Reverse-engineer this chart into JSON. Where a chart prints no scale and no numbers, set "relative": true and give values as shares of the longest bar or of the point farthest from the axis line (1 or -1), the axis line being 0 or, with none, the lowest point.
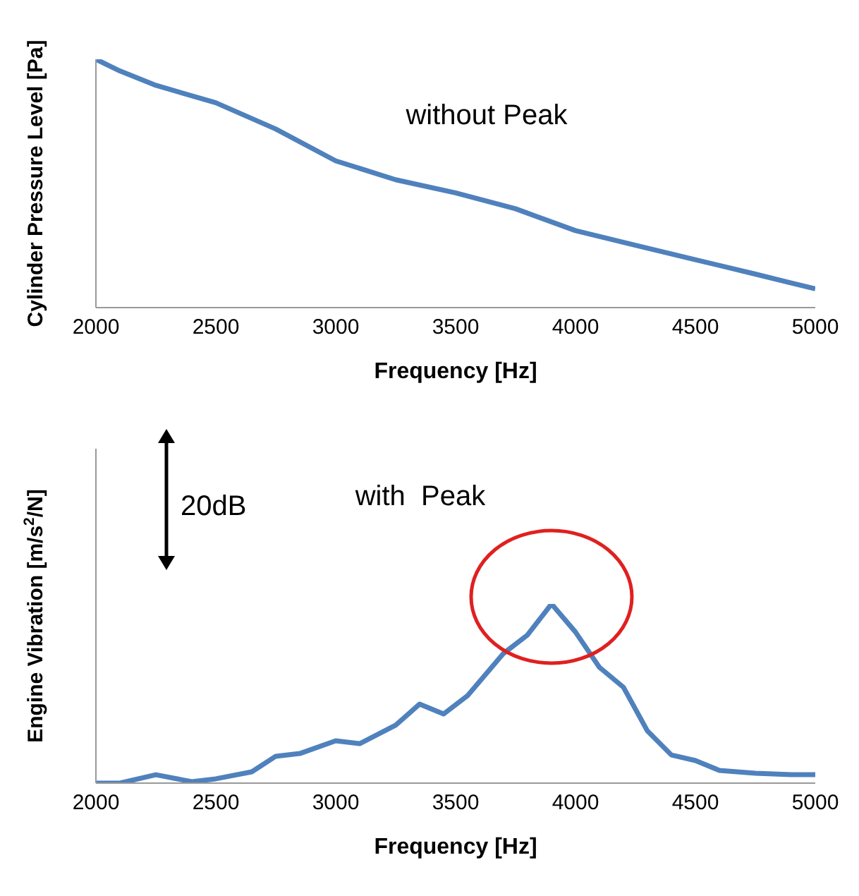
{
  "chart_data": [
    {
      "type": "line",
      "relative": true,
      "xlabel": "Frequency [Hz]",
      "ylabel": "Cylinder Pressure Level [Pa]",
      "xlim": [
        2000,
        5000
      ],
      "xticks": [
        2000,
        2500,
        3000,
        3500,
        4000,
        4500,
        5000
      ],
      "marker": "none",
      "annotations": [
        "without Peak"
      ],
      "x": [
        2000,
        2100,
        2250,
        2500,
        2750,
        3000,
        3250,
        3500,
        3750,
        4000,
        4250,
        4500,
        4750,
        4900,
        5000
      ],
      "series": [
        {
          "color": "#4f81bd",
          "values": [
            1,
            0.953,
            0.895,
            0.825,
            0.719,
            0.591,
            0.515,
            0.462,
            0.398,
            0.31,
            0.251,
            0.193,
            0.135,
            0.099,
            0.076
          ]
        }
      ]
    },
    {
      "type": "line",
      "relative": true,
      "xlabel": "Frequency [Hz]",
      "ylabel": "Engine Vibration [m/s$^{2}$/N]",
      "xlim": [
        2000,
        5000
      ],
      "xticks": [
        2000,
        2500,
        3000,
        3500,
        4000,
        4500,
        5000
      ],
      "marker": "none",
      "annotations": [
        "20dB",
        "with  Peak"
      ],
      "x": [
        2000,
        2100,
        2250,
        2400,
        2500,
        2650,
        2750,
        2850,
        3000,
        3100,
        3250,
        3350,
        3450,
        3550,
        3700,
        3800,
        3900,
        4000,
        4100,
        4200,
        4300,
        4400,
        4500,
        4600,
        4750,
        4900,
        5000
      ],
      "series": [
        {
          "color": "#4f81bd",
          "values": [
            0,
            0,
            0.047,
            0.008,
            0.024,
            0.063,
            0.15,
            0.165,
            0.236,
            0.22,
            0.323,
            0.441,
            0.386,
            0.488,
            0.724,
            0.827,
            1,
            0.843,
            0.646,
            0.535,
            0.291,
            0.157,
            0.126,
            0.071,
            0.055,
            0.047,
            0.047
          ]
        }
      ]
    }
  ]
}
